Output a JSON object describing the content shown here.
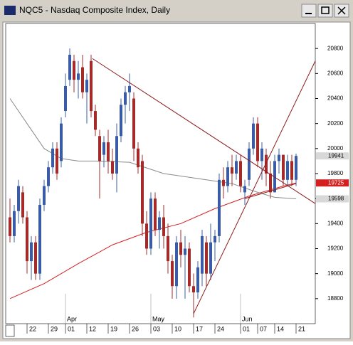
{
  "chart_data": {
    "type": "candlestick",
    "title": "NQC5 - Nasdaq Composite Index, Daily",
    "open": [
      19450,
      19300,
      19500,
      19650,
      19450,
      19100,
      19250,
      19000,
      19550,
      19700,
      19850,
      20000,
      19900,
      20300,
      20550,
      20700,
      20550,
      20650,
      20450,
      20700,
      20300,
      20100,
      19950,
      20050,
      19900,
      19800,
      20100,
      20350,
      20450,
      20400,
      20000,
      19900,
      19400,
      19200,
      19600,
      19350,
      19450,
      19300,
      19100,
      18900,
      19250,
      19150,
      19200,
      18900,
      18850,
      19000,
      19250,
      19000,
      19250,
      19300,
      19750,
      19700,
      19850,
      19800,
      19900,
      19650,
      19750,
      20000,
      20200,
      19900,
      19950,
      19800,
      19650,
      19900,
      19950,
      19750,
      19900,
      19750
    ],
    "high": [
      19600,
      19550,
      19750,
      19700,
      19500,
      19300,
      19300,
      19600,
      19750,
      19900,
      20050,
      20050,
      20250,
      20600,
      20800,
      20750,
      20700,
      20750,
      20600,
      20750,
      20350,
      20150,
      20100,
      20150,
      20000,
      20200,
      20400,
      20500,
      20600,
      20450,
      20050,
      19950,
      19500,
      19650,
      19650,
      19500,
      19550,
      19400,
      19150,
      19300,
      19350,
      19300,
      19250,
      19000,
      19100,
      19350,
      19300,
      19400,
      19350,
      19800,
      19850,
      19900,
      19950,
      19950,
      19950,
      19750,
      20050,
      20250,
      20250,
      20050,
      20000,
      19900,
      19950,
      20000,
      19950,
      19950,
      19950,
      19960
    ],
    "low": [
      19250,
      19250,
      19400,
      19400,
      19000,
      18950,
      18950,
      18950,
      19500,
      19650,
      19800,
      19750,
      19850,
      20250,
      20500,
      20450,
      20400,
      20400,
      20200,
      20250,
      20100,
      19600,
      19850,
      19800,
      19750,
      19650,
      20050,
      20200,
      20300,
      19900,
      19800,
      19300,
      19150,
      19150,
      19300,
      19200,
      19200,
      19000,
      18800,
      18800,
      19050,
      18800,
      18850,
      18650,
      18800,
      18900,
      18900,
      18950,
      19100,
      19250,
      19600,
      19650,
      19700,
      19750,
      19650,
      19550,
      19700,
      19950,
      19850,
      19750,
      19700,
      19600,
      19650,
      19800,
      19700,
      19700,
      19700,
      19700
    ],
    "close": [
      19300,
      19500,
      19700,
      19450,
      19100,
      19250,
      19000,
      19550,
      19700,
      19850,
      20000,
      19800,
      20200,
      20500,
      20750,
      20550,
      20600,
      20450,
      20550,
      20300,
      20150,
      19900,
      20050,
      19900,
      19800,
      20100,
      20350,
      20450,
      20500,
      20000,
      19850,
      19400,
      19200,
      19600,
      19350,
      19450,
      19300,
      19100,
      18900,
      19250,
      19150,
      19200,
      18900,
      18850,
      19050,
      19300,
      19000,
      19250,
      19300,
      19750,
      19700,
      19850,
      19800,
      19900,
      19700,
      19700,
      20000,
      20200,
      19900,
      20000,
      19800,
      19650,
      19900,
      19950,
      19750,
      19900,
      19750,
      19941
    ],
    "up_color": "#3a5ca6",
    "down_color": "#a52a2a",
    "averages": [
      {
        "color": "#d42020",
        "x": [
          0,
          8,
          16,
          24,
          32,
          40,
          48,
          56,
          64,
          67
        ],
        "values": [
          18800,
          18920,
          19080,
          19230,
          19330,
          19400,
          19520,
          19620,
          19700,
          19725
        ]
      },
      {
        "color": "#8a8a8a",
        "x": [
          0,
          4,
          8,
          12,
          16,
          20,
          28,
          36,
          44,
          52,
          58,
          62,
          67
        ],
        "values": [
          20400,
          20200,
          20000,
          19920,
          19900,
          19900,
          19890,
          19800,
          19760,
          19720,
          19650,
          19610,
          19598
        ]
      }
    ],
    "trendlines": [
      {
        "x": [
          19.3,
          71.5
        ],
        "values": [
          20720,
          19560
        ]
      },
      {
        "x": [
          43,
          71.5
        ],
        "values": [
          18680,
          20700
        ]
      },
      {
        "x": [
          55,
          67
        ],
        "values": [
          19600,
          19720
        ]
      }
    ],
    "trendline_color": "#8b1a1a",
    "ylim": [
      18600,
      21000
    ],
    "yticks": [
      18800,
      19000,
      19200,
      19400,
      19600,
      19800,
      20000,
      20200,
      20400,
      20600,
      20800
    ],
    "xlim": [
      -1,
      71.5
    ],
    "xticks": [
      {
        "value": 4,
        "label": "22"
      },
      {
        "value": 9,
        "label": "29"
      },
      {
        "value": 13,
        "label": "01"
      },
      {
        "value": 18,
        "label": "12"
      },
      {
        "value": 23,
        "label": "19"
      },
      {
        "value": 28,
        "label": "26"
      },
      {
        "value": 33,
        "label": "03"
      },
      {
        "value": 38,
        "label": "10"
      },
      {
        "value": 43,
        "label": "17"
      },
      {
        "value": 48,
        "label": "24"
      },
      {
        "value": 54,
        "label": "01"
      },
      {
        "value": 58,
        "label": "07"
      },
      {
        "value": 62,
        "label": "14"
      },
      {
        "value": 67,
        "label": "21"
      }
    ],
    "months": [
      {
        "value": 13,
        "label": "Apr"
      },
      {
        "value": 33,
        "label": "May"
      },
      {
        "value": 54,
        "label": "Jun"
      }
    ],
    "markers": [
      {
        "value": 19941,
        "color": "#d8d8d8",
        "text_color": "#000"
      },
      {
        "value": 19725,
        "color": "#d42020",
        "text_color": "#fff"
      },
      {
        "value": 19598,
        "color": "#d8d8d8",
        "text_color": "#000"
      }
    ]
  }
}
